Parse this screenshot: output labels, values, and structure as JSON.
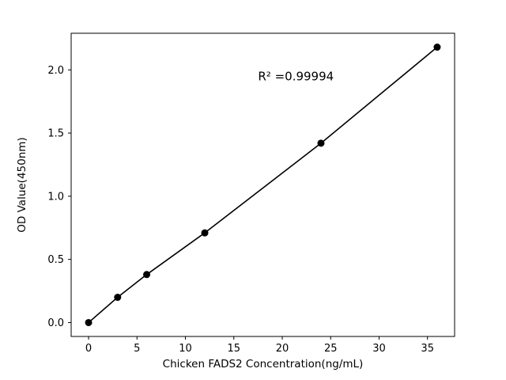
{
  "chart_data": {
    "type": "scatter",
    "title": "",
    "xlabel": "Chicken FADS2 Concentration(ng/mL)",
    "ylabel": "OD Value(450nm)",
    "x": [
      0,
      3,
      6,
      12,
      24,
      36
    ],
    "y": [
      0.0,
      0.2,
      0.38,
      0.71,
      1.42,
      2.18
    ],
    "line": true,
    "marker": "circle",
    "color": "#000000",
    "background": "#ffffff",
    "xlim": [
      -1.8,
      37.8
    ],
    "ylim": [
      -0.11,
      2.29
    ],
    "x_ticks": [
      0,
      5,
      10,
      15,
      20,
      25,
      30,
      35
    ],
    "x_tick_labels": [
      "0",
      "5",
      "10",
      "15",
      "20",
      "25",
      "30",
      "35"
    ],
    "y_ticks": [
      0.0,
      0.5,
      1.0,
      1.5,
      2.0
    ],
    "y_tick_labels": [
      "0.0",
      "0.5",
      "1.0",
      "1.5",
      "2.0"
    ],
    "grid": false,
    "legend": "none",
    "annotation": {
      "text": "R² =0.99994",
      "x": 17.5,
      "y": 1.95
    }
  }
}
